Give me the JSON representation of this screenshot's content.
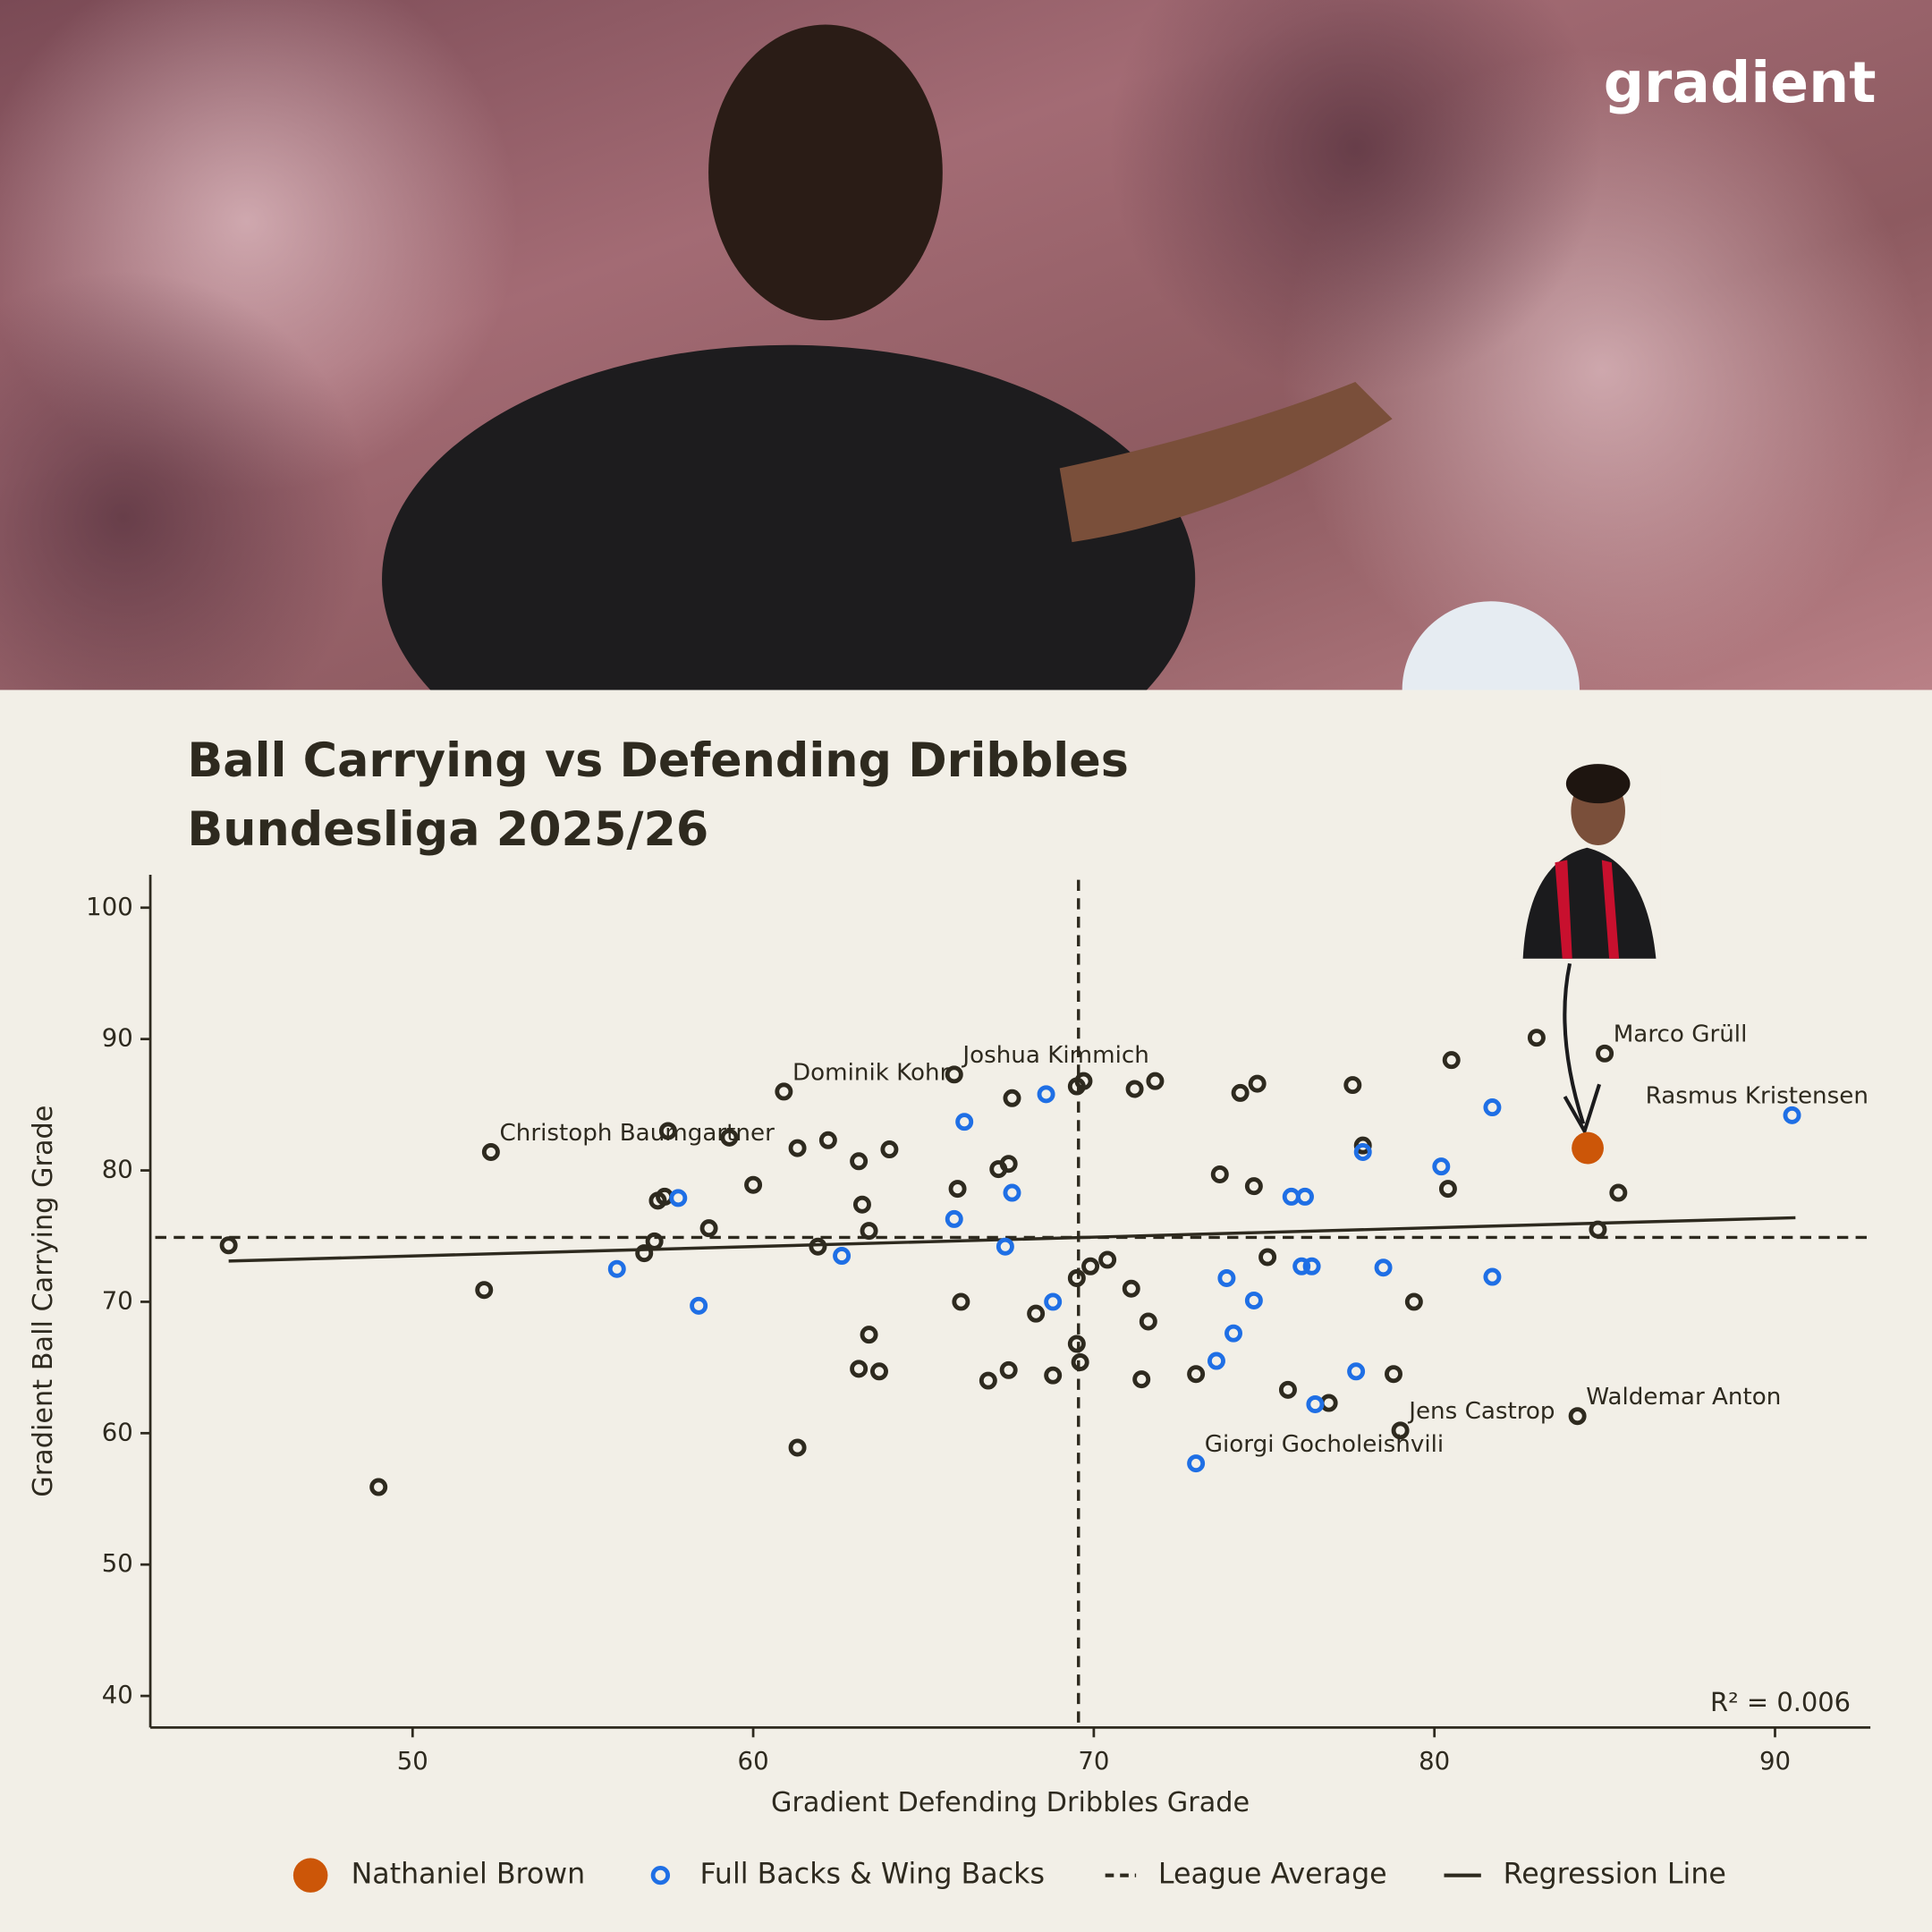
{
  "chart_data": {
    "type": "scatter",
    "brand": "gradient",
    "title": "Ball Carrying vs Defending Dribbles",
    "subtitle": "Bundesliga 2025/26",
    "xlabel": "Gradient Defending Dribbles Grade",
    "ylabel": "Gradient Ball Carrying Grade",
    "r2_label": "R² = 0.006",
    "xlim": [
      42.3,
      92.8
    ],
    "ylim": [
      37.6,
      102.5
    ],
    "xticks": [
      50,
      60,
      70,
      80,
      90
    ],
    "yticks": [
      40,
      50,
      60,
      70,
      80,
      90,
      100
    ],
    "grid": false,
    "series": [
      {
        "color": "#2e2a1f",
        "marker": "ring",
        "x": [
          44.6,
          49.0,
          52.1,
          52.3,
          56.8,
          57.1,
          57.2,
          57.4,
          57.5,
          58.7,
          59.3,
          60.0,
          60.9,
          61.3,
          61.3,
          61.9,
          62.2,
          63.1,
          63.1,
          63.2,
          63.4,
          63.4,
          63.7,
          64.0,
          65.9,
          66.0,
          66.1,
          66.9,
          67.2,
          67.5,
          67.5,
          67.6,
          68.3,
          68.8,
          69.5,
          69.7,
          69.5,
          69.5,
          69.6,
          69.9,
          70.4,
          71.1,
          71.2,
          71.4,
          71.6,
          71.8,
          73.0,
          73.7,
          74.3,
          74.7,
          74.8,
          75.1,
          75.7,
          76.9,
          77.6,
          77.9,
          78.8,
          79.0,
          79.4,
          80.4,
          80.5,
          83.0,
          84.2,
          84.8,
          85.0,
          85.4
        ],
        "values": [
          74.3,
          55.9,
          70.9,
          81.4,
          73.7,
          74.6,
          77.7,
          78.0,
          83.0,
          75.6,
          82.5,
          78.9,
          86.0,
          58.9,
          81.7,
          74.2,
          82.3,
          80.7,
          64.9,
          77.4,
          67.5,
          75.4,
          64.7,
          81.6,
          87.3,
          78.6,
          70.0,
          64.0,
          80.1,
          80.5,
          64.8,
          85.5,
          69.1,
          64.4,
          86.4,
          86.8,
          71.8,
          66.8,
          65.4,
          72.7,
          73.2,
          71.0,
          86.2,
          64.1,
          68.5,
          86.8,
          64.5,
          79.7,
          85.9,
          78.8,
          86.6,
          73.4,
          63.3,
          62.3,
          86.5,
          81.9,
          64.5,
          60.2,
          70.0,
          78.6,
          88.4,
          90.1,
          61.3,
          75.5,
          88.9,
          78.3
        ],
        "labels": [
          null,
          null,
          null,
          "Christoph Baumgartner",
          null,
          null,
          null,
          null,
          null,
          null,
          null,
          null,
          "Dominik Kohr",
          null,
          null,
          null,
          null,
          null,
          null,
          null,
          null,
          null,
          null,
          null,
          "Joshua Kimmich",
          null,
          null,
          null,
          null,
          null,
          null,
          null,
          null,
          null,
          null,
          null,
          null,
          null,
          null,
          null,
          null,
          null,
          null,
          null,
          null,
          null,
          null,
          null,
          null,
          null,
          null,
          null,
          null,
          null,
          null,
          null,
          null,
          "Jens Castrop",
          null,
          null,
          null,
          null,
          "Waldemar Anton",
          null,
          "Marco Grüll",
          null
        ]
      },
      {
        "name": "Full Backs & Wing Backs",
        "color": "#1f6fe5",
        "marker": "ring",
        "x": [
          56.0,
          57.8,
          58.4,
          62.6,
          65.9,
          66.2,
          67.4,
          67.6,
          68.6,
          68.8,
          73.0,
          73.6,
          73.9,
          74.1,
          74.7,
          75.8,
          76.2,
          76.1,
          76.4,
          76.5,
          77.7,
          77.9,
          78.5,
          80.2,
          81.7,
          81.7,
          90.5
        ],
        "values": [
          72.5,
          77.9,
          69.7,
          73.5,
          76.3,
          83.7,
          74.2,
          78.3,
          85.8,
          70.0,
          57.7,
          65.5,
          71.8,
          67.6,
          70.1,
          78.0,
          78.0,
          72.7,
          72.7,
          62.2,
          64.7,
          81.4,
          72.6,
          80.3,
          84.8,
          71.9,
          84.2
        ],
        "labels": [
          null,
          null,
          null,
          null,
          null,
          null,
          null,
          null,
          null,
          null,
          "Giorgi Gocholeishvili",
          null,
          null,
          null,
          null,
          null,
          null,
          null,
          null,
          null,
          null,
          null,
          null,
          null,
          null,
          null,
          "Rasmus Kristensen"
        ]
      },
      {
        "name": "Nathaniel Brown",
        "color": "#cc5608",
        "marker": "filled",
        "x": [
          84.5
        ],
        "values": [
          81.7
        ],
        "labels": [
          null
        ]
      }
    ],
    "league_average": {
      "name": "League Average",
      "x": 69.55,
      "y": 74.9,
      "color": "#2e2a1f"
    },
    "regression": {
      "name": "Regression Line",
      "x": [
        44.6,
        90.6
      ],
      "y": [
        73.1,
        76.4
      ],
      "color": "#2e2a1f"
    }
  }
}
